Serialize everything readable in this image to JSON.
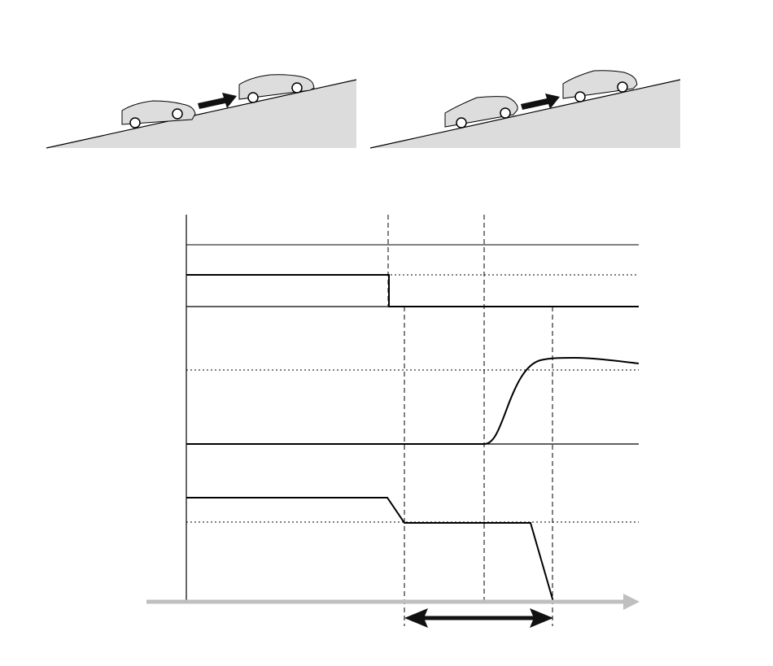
{
  "colors": {
    "background": "#ffffff",
    "ground_fill": "#dcdcdc",
    "line": "#000000",
    "car_fill": "#dddddd",
    "time_axis": "#bfbfbf",
    "arrow": "#111111"
  },
  "illustrations": [
    {
      "name": "uphill-scene-left",
      "icons": [
        "car-icon",
        "arrow-right-icon",
        "car-icon"
      ]
    },
    {
      "name": "uphill-scene-right",
      "icons": [
        "car-icon",
        "arrow-right-icon",
        "car-icon"
      ]
    }
  ],
  "timing_chart": {
    "phase_marker": {
      "icon": "double-arrow-icon"
    },
    "time_axis": {
      "icon": "arrow-right-icon"
    }
  }
}
